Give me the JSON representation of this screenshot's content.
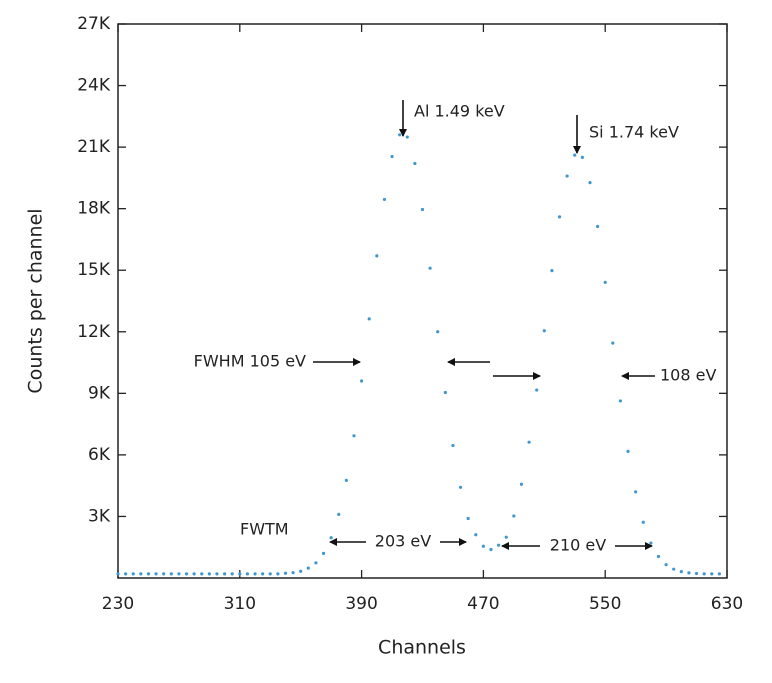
{
  "chart_data": {
    "type": "scatter",
    "x_label": "Channels",
    "y_label": "Counts per channel",
    "xlim": [
      230,
      630
    ],
    "ylim": [
      0,
      27000
    ],
    "xticks": [
      230,
      310,
      390,
      470,
      550,
      630
    ],
    "yticks": [
      {
        "value": 3000,
        "label": "3K"
      },
      {
        "value": 6000,
        "label": "6K"
      },
      {
        "value": 9000,
        "label": "9K"
      },
      {
        "value": 12000,
        "label": "12K"
      },
      {
        "value": 15000,
        "label": "15K"
      },
      {
        "value": 18000,
        "label": "18K"
      },
      {
        "value": 21000,
        "label": "21K"
      },
      {
        "value": 24000,
        "label": "24K"
      },
      {
        "value": 27000,
        "label": "27K"
      }
    ],
    "color": "#3f97cf",
    "x": [
      230,
      235,
      240,
      245,
      250,
      255,
      260,
      265,
      270,
      275,
      280,
      285,
      290,
      295,
      300,
      305,
      310,
      315,
      320,
      325,
      330,
      335,
      340,
      345,
      350,
      355,
      360,
      365,
      370,
      375,
      380,
      385,
      390,
      395,
      400,
      405,
      410,
      415,
      420,
      425,
      430,
      435,
      440,
      445,
      450,
      455,
      460,
      465,
      470,
      475,
      480,
      485,
      490,
      495,
      500,
      505,
      510,
      515,
      520,
      525,
      530,
      535,
      540,
      545,
      550,
      555,
      560,
      565,
      570,
      575,
      580,
      585,
      590,
      595,
      600,
      605,
      610,
      615,
      620,
      625
    ],
    "values": [
      200,
      200,
      200,
      200,
      200,
      200,
      200,
      200,
      200,
      200,
      200,
      200,
      200,
      200,
      200,
      200,
      200,
      200,
      200,
      200,
      200,
      200,
      230,
      260,
      330,
      480,
      740,
      1200,
      1960,
      3100,
      4760,
      6930,
      9600,
      12630,
      15700,
      18450,
      20540,
      21600,
      21490,
      20200,
      17960,
      15100,
      12000,
      9040,
      6460,
      4420,
      2900,
      2110,
      1550,
      1390,
      1600,
      1990,
      3020,
      4570,
      6620,
      9160,
      12050,
      14980,
      17600,
      19590,
      20610,
      20500,
      19270,
      17130,
      14410,
      11450,
      8630,
      6170,
      4200,
      2720,
      1700,
      1050,
      650,
      430,
      310,
      250,
      220,
      200,
      200,
      200
    ],
    "annotations": [
      "Al 1.49 keV",
      "Si 1.74 keV",
      "FWHM 105 eV",
      "108 eV",
      "FWTM",
      "203 eV",
      "210 eV"
    ]
  }
}
